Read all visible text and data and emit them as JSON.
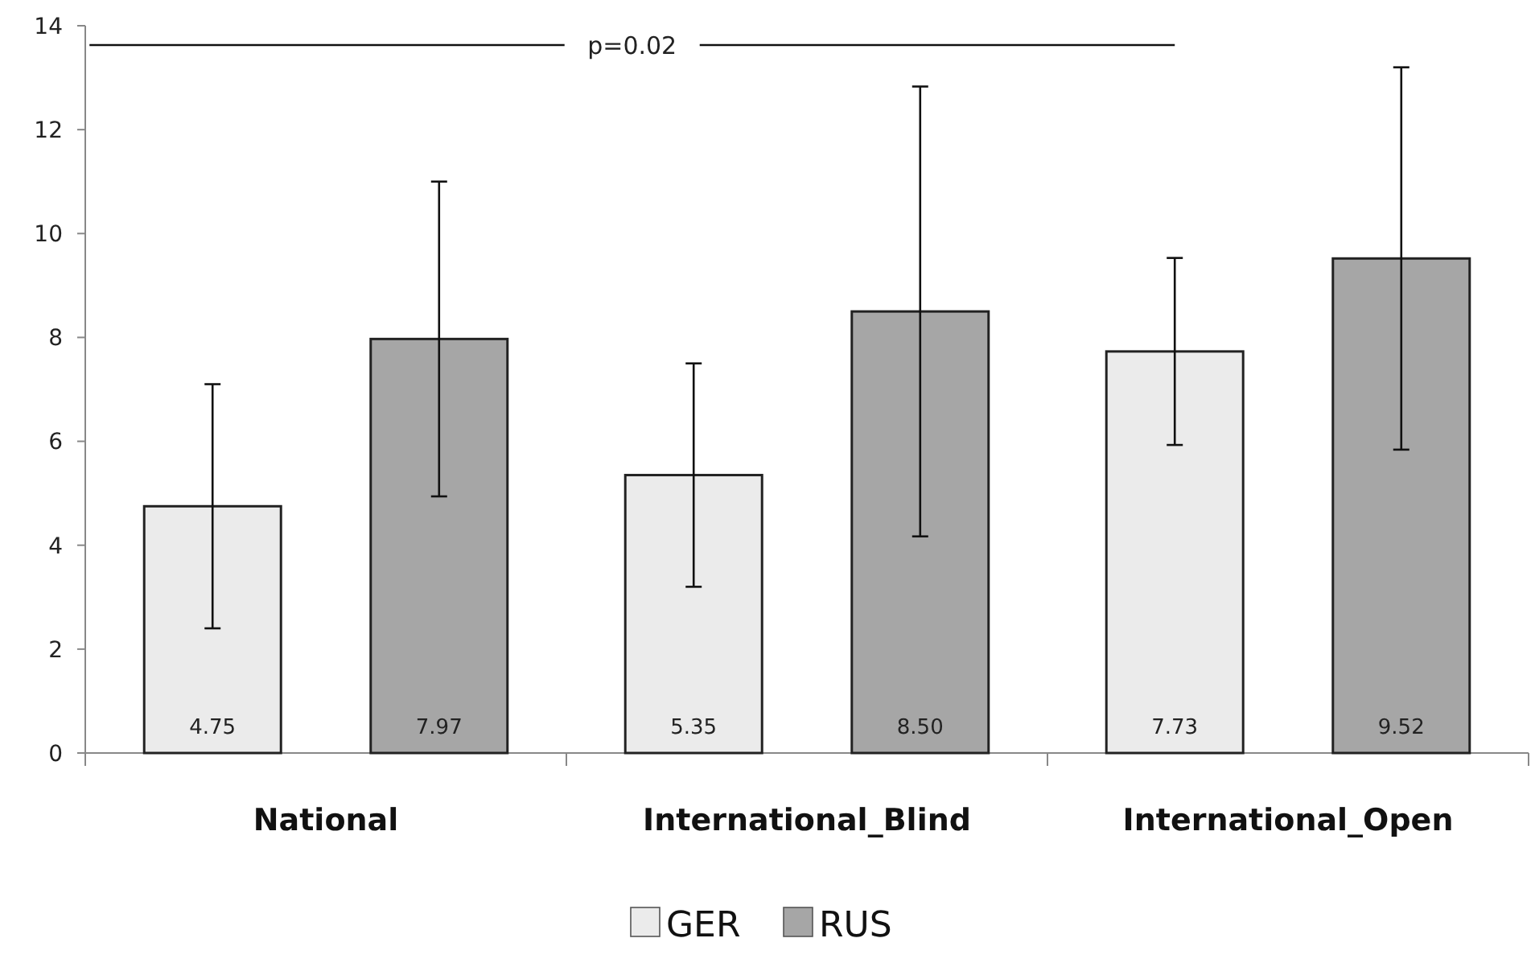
{
  "chart_data": {
    "type": "bar",
    "categories": [
      "National",
      "International_Blind",
      "International_Open"
    ],
    "series": [
      {
        "name": "GER",
        "color": "#ebebeb",
        "values": [
          4.75,
          5.35,
          7.73
        ],
        "value_labels": [
          "4.75",
          "5.35",
          "7.73"
        ],
        "errors": [
          2.35,
          2.15,
          1.8
        ]
      },
      {
        "name": "RUS",
        "color": "#a6a6a6",
        "values": [
          7.97,
          8.5,
          9.52
        ],
        "value_labels": [
          "7.97",
          "8.50",
          "9.52"
        ],
        "errors": [
          3.03,
          4.33,
          3.68
        ]
      }
    ],
    "ylim": [
      0,
      14
    ],
    "yticks": [
      0,
      2,
      4,
      6,
      8,
      10,
      12,
      14
    ],
    "grid": false,
    "legend": "bottom",
    "annotations": [
      "p=0.02"
    ]
  }
}
